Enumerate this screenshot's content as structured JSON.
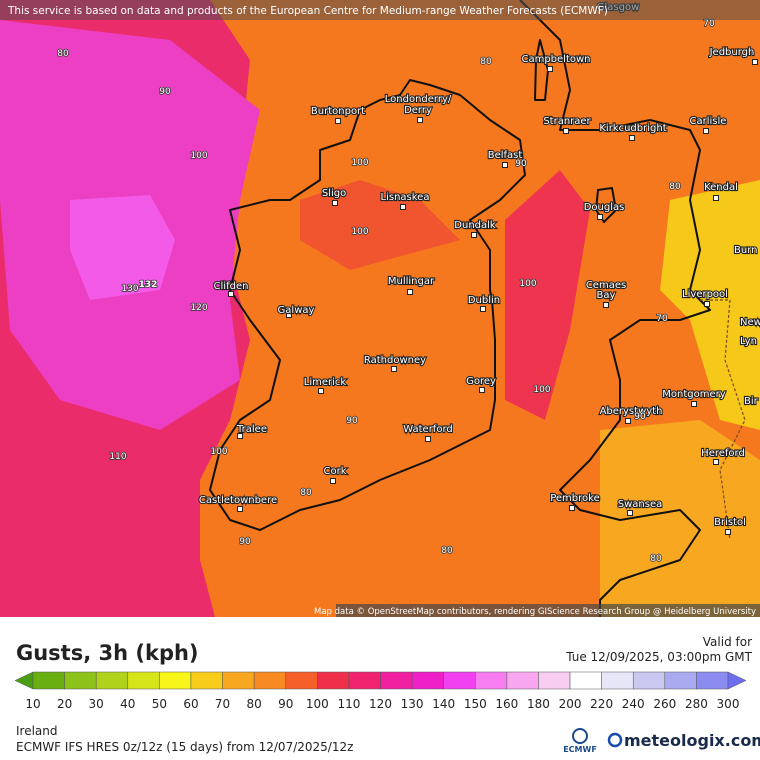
{
  "banner": "This service is based on data and products of the European Centre for Medium-range Weather Forecasts (ECMWF)",
  "map": {
    "places": [
      "Glasgow",
      "Jedburgh",
      "Campbeltown",
      "Londonderry/",
      "Derry",
      "Burtonport",
      "Stranraer",
      "Kirkcudbright",
      "Carlisle",
      "Belfast",
      "Lisnaskea",
      "Sligo",
      "Kendal",
      "Douglas",
      "Dundalk",
      "Burn",
      "Mullingar",
      "Clifden",
      "Dublin",
      "Cemaes",
      "Bay",
      "Liverpool",
      "Galway",
      "Newca",
      "Lyn",
      "Rathdowney",
      "Limerick",
      "Gorey",
      "Montgomery",
      "Bir",
      "Aberystwyth",
      "Tralee",
      "Waterford",
      "Hereford",
      "Cork",
      "Castletownbere",
      "Pembroke",
      "Swansea",
      "Bristol"
    ],
    "contour_labels": [
      80,
      90,
      100,
      80,
      70,
      132,
      130,
      120,
      100,
      100,
      100,
      100,
      90,
      110,
      100,
      80,
      90,
      80,
      80,
      70,
      90,
      80,
      90
    ],
    "attribution": "Map data © OpenStreetMap contributors, rendering GIScience Research Group @ Heidelberg University"
  },
  "legend": {
    "title": "Gusts, 3h (kph)",
    "valid_label": "Valid for",
    "valid_time": "Tue 12/09/2025, 03:00pm GMT",
    "ticks": [
      10,
      20,
      30,
      40,
      50,
      60,
      70,
      80,
      90,
      100,
      110,
      120,
      130,
      140,
      150,
      160,
      180,
      200,
      220,
      240,
      260,
      280,
      300
    ],
    "colors": [
      "#4a9e12",
      "#6aaf12",
      "#8cc21a",
      "#b0d21a",
      "#d6e41a",
      "#f7f51a",
      "#f7cc1a",
      "#f7a820",
      "#f78a22",
      "#f5602a",
      "#f0304a",
      "#f0246e",
      "#f020a0",
      "#f020c8",
      "#f040f0",
      "#f77ef0",
      "#f8a6f0",
      "#f8cdf2",
      "#ffffff",
      "#e6e6f6",
      "#c8c8f0",
      "#aaaaf0",
      "#8c8cf0",
      "#6e6ef0"
    ]
  },
  "footer": {
    "region": "Ireland",
    "model": "ECMWF IFS HRES 0z/12z (15 days) from 12/07/2025/12z",
    "ecmwf_logo": "ECMWF",
    "brand": "meteologix.com"
  }
}
